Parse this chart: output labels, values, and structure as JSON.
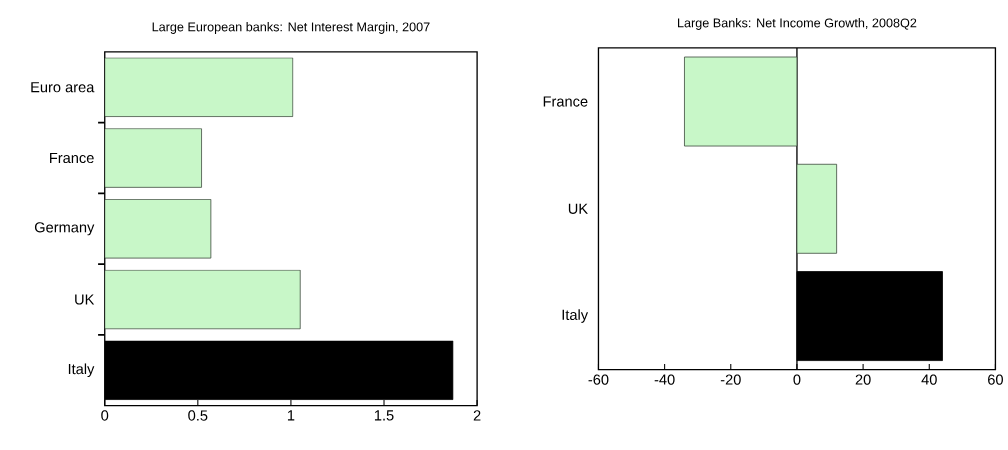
{
  "chart_data": [
    {
      "type": "bar",
      "orientation": "horizontal",
      "title": "Large European banks: Net Interest Margin, 2007",
      "categories": [
        "Euro area",
        "France",
        "Germany",
        "UK",
        "Italy"
      ],
      "values": [
        1.01,
        0.52,
        0.57,
        1.05,
        1.87
      ],
      "colors": [
        "#c8f7c8",
        "#c8f7c8",
        "#c8f7c8",
        "#c8f7c8",
        "#000000"
      ],
      "xlim": [
        0,
        2
      ],
      "xticks": [
        0,
        0.5,
        1,
        1.5,
        2
      ]
    },
    {
      "type": "bar",
      "orientation": "horizontal",
      "title": "Large Banks: Net Income Growth, 2008Q2",
      "categories": [
        "France",
        "UK",
        "Italy"
      ],
      "values": [
        -34,
        12,
        44
      ],
      "colors": [
        "#c8f7c8",
        "#c8f7c8",
        "#000000"
      ],
      "xlim": [
        -60,
        60
      ],
      "xticks": [
        -60,
        -40,
        -20,
        0,
        20,
        40,
        60
      ]
    }
  ]
}
